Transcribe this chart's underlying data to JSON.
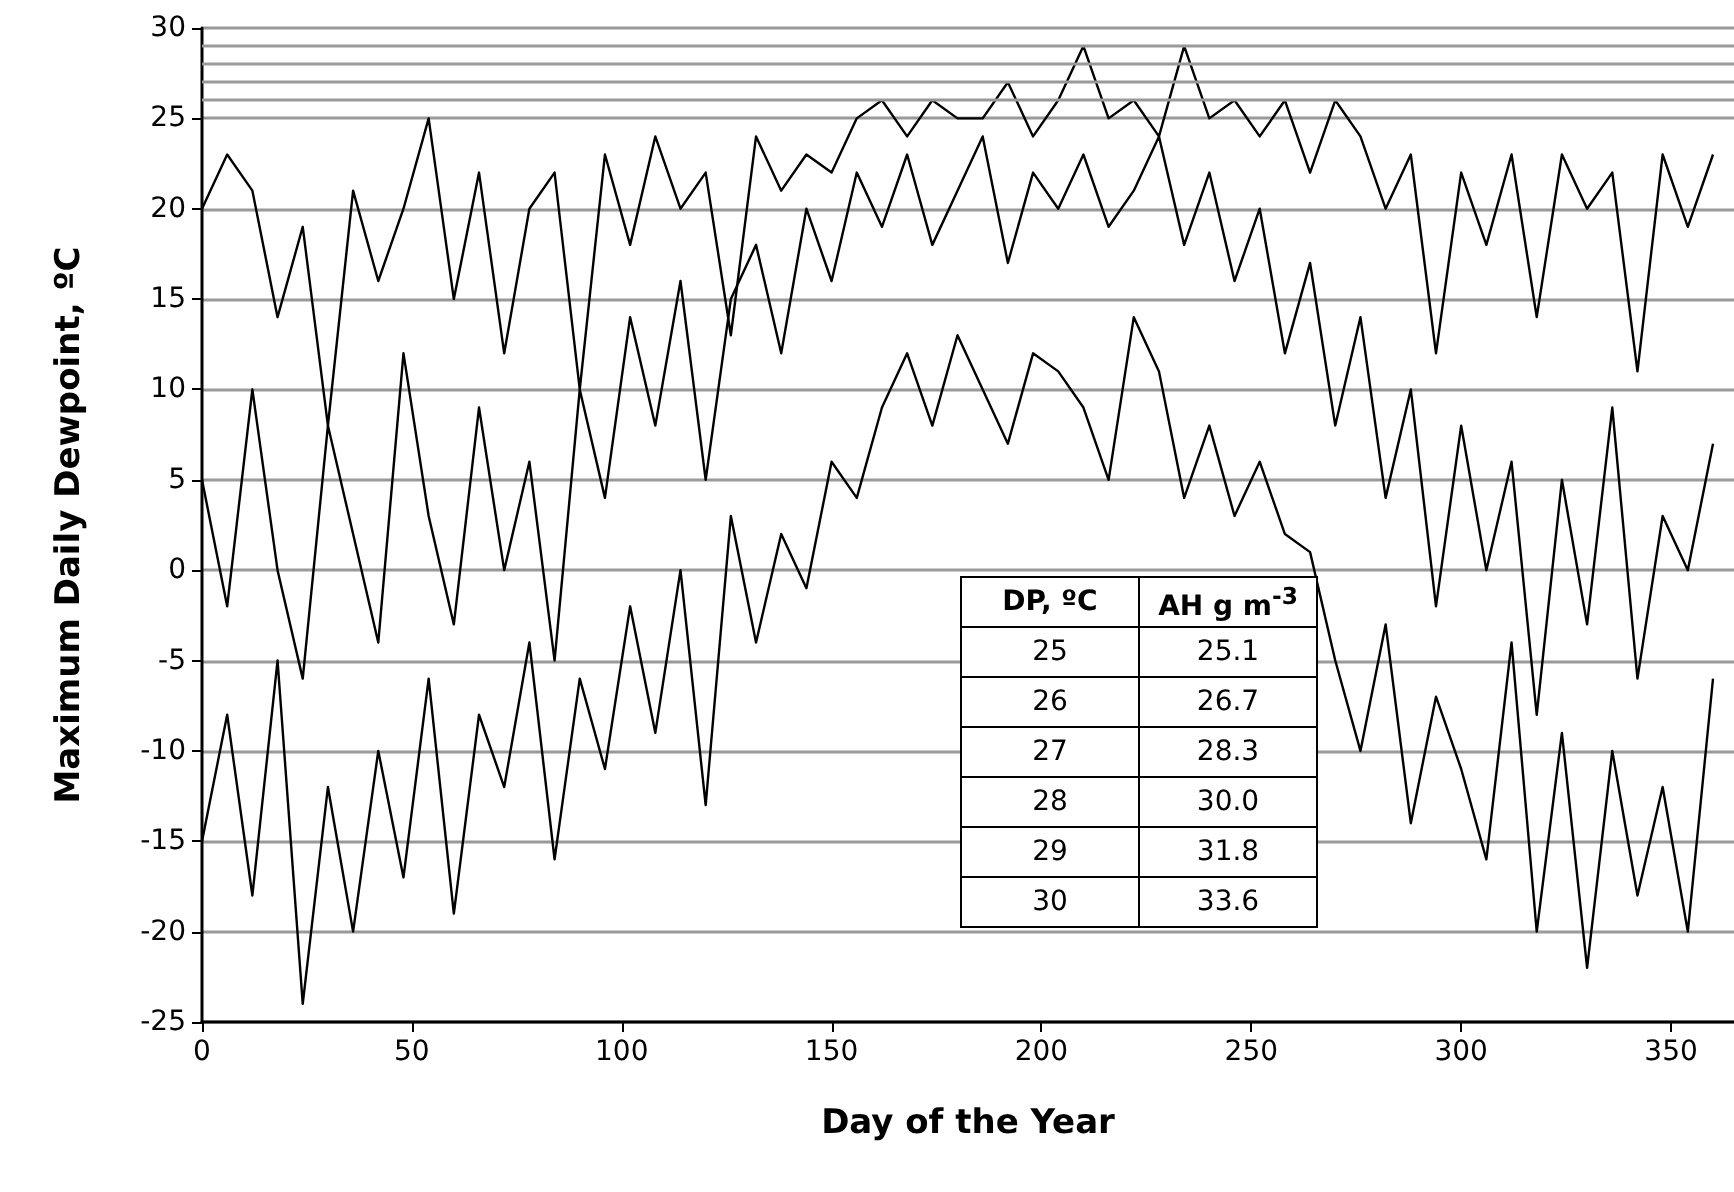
{
  "chart_data": {
    "type": "line",
    "xlabel": "Day of the Year",
    "ylabel": "Maximum Daily Dewpoint, ºC",
    "x": [
      0,
      6,
      12,
      18,
      24,
      30,
      36,
      42,
      48,
      54,
      60,
      66,
      72,
      78,
      84,
      90,
      96,
      102,
      108,
      114,
      120,
      126,
      132,
      138,
      144,
      150,
      156,
      162,
      168,
      174,
      180,
      186,
      192,
      198,
      204,
      210,
      216,
      222,
      228,
      234,
      240,
      246,
      252,
      258,
      264,
      270,
      276,
      282,
      288,
      294,
      300,
      306,
      312,
      318,
      324,
      330,
      336,
      342,
      348,
      354,
      360
    ],
    "series": [
      {
        "color": "#000000",
        "values": [
          20,
          23,
          21,
          14,
          19,
          8,
          21,
          16,
          20,
          25,
          15,
          22,
          12,
          20,
          22,
          10,
          23,
          18,
          24,
          20,
          22,
          13,
          24,
          21,
          23,
          22,
          25,
          26,
          24,
          26,
          25,
          25,
          27,
          24,
          26,
          29,
          25,
          26,
          24,
          29,
          25,
          26,
          24,
          26,
          22,
          26,
          24,
          20,
          23,
          12,
          22,
          18,
          23,
          14,
          23,
          20,
          22,
          11,
          23,
          19,
          23
        ]
      },
      {
        "color": "#000000",
        "values": [
          5,
          -2,
          10,
          0,
          -6,
          8,
          2,
          -4,
          12,
          3,
          -3,
          9,
          0,
          6,
          -5,
          10,
          4,
          14,
          8,
          16,
          5,
          15,
          18,
          12,
          20,
          16,
          22,
          19,
          23,
          18,
          21,
          24,
          17,
          22,
          20,
          23,
          19,
          21,
          24,
          18,
          22,
          16,
          20,
          12,
          17,
          8,
          14,
          4,
          10,
          -2,
          8,
          0,
          6,
          -8,
          5,
          -3,
          9,
          -6,
          3,
          0,
          7
        ]
      },
      {
        "color": "#000000",
        "values": [
          -15,
          -8,
          -18,
          -5,
          -24,
          -12,
          -20,
          -10,
          -17,
          -6,
          -19,
          -8,
          -12,
          -4,
          -16,
          -6,
          -11,
          -2,
          -9,
          0,
          -13,
          3,
          -4,
          2,
          -1,
          6,
          4,
          9,
          12,
          8,
          13,
          10,
          7,
          12,
          11,
          9,
          5,
          14,
          11,
          4,
          8,
          3,
          6,
          2,
          1,
          -5,
          -10,
          -3,
          -14,
          -7,
          -11,
          -16,
          -4,
          -20,
          -9,
          -22,
          -10,
          -18,
          -12,
          -20,
          -6
        ]
      }
    ],
    "xlim": [
      0,
      365
    ],
    "xticks": [
      0,
      50,
      100,
      150,
      200,
      250,
      300,
      350
    ],
    "ylim": [
      -25,
      30
    ],
    "yticks": [
      -25,
      -20,
      -15,
      -10,
      -5,
      0,
      5,
      10,
      15,
      20,
      25,
      30
    ],
    "grid": "y",
    "marker": "none",
    "line_style": "solid",
    "ref_lines": [
      {
        "axis": "y",
        "value": 26,
        "color": "#999999"
      },
      {
        "axis": "y",
        "value": 27,
        "color": "#999999"
      },
      {
        "axis": "y",
        "value": 28,
        "color": "#999999"
      },
      {
        "axis": "y",
        "value": 29,
        "color": "#999999"
      }
    ],
    "annotations": [
      "DP, ºC",
      "AH g m$^{-3}$",
      "25",
      "25.1",
      "26",
      "26.7",
      "27",
      "28.3",
      "28",
      "30.0",
      "29",
      "31.8",
      "30",
      "33.6"
    ]
  }
}
